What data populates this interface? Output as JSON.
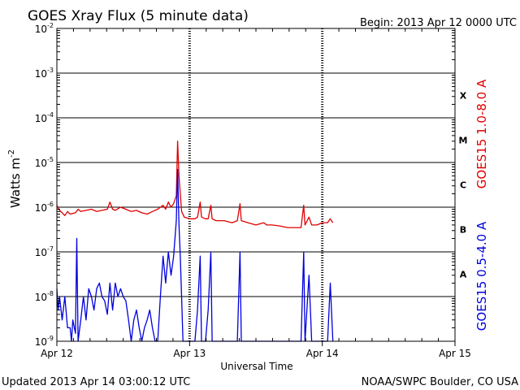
{
  "chart_data": {
    "type": "line",
    "title": "GOES Xray Flux (5 minute data)",
    "begin_label": "Begin:  2013 Apr 12 0000 UTC",
    "xlabel": "Universal Time",
    "ylabel": "Watts m",
    "ylabel_exponent": "-2",
    "y_scale": "log",
    "ylim": [
      1e-09,
      0.01
    ],
    "y_ticks": [
      {
        "base": "10",
        "exp": "-2"
      },
      {
        "base": "10",
        "exp": "-3"
      },
      {
        "base": "10",
        "exp": "-4"
      },
      {
        "base": "10",
        "exp": "-5"
      },
      {
        "base": "10",
        "exp": "-6"
      },
      {
        "base": "10",
        "exp": "-7"
      },
      {
        "base": "10",
        "exp": "-8"
      },
      {
        "base": "10",
        "exp": "-9"
      }
    ],
    "x_range_days": [
      0,
      3
    ],
    "x_ticks": [
      "Apr 12",
      "Apr 13",
      "Apr 14",
      "Apr 15"
    ],
    "flare_classes": [
      "X",
      "M",
      "C",
      "B",
      "A"
    ],
    "grid": true,
    "series": [
      {
        "name": "GOES15 1.0-8.0 A",
        "color": "#e00000",
        "points": [
          [
            0.0,
            1.1e-06
          ],
          [
            0.02,
            8.5e-07
          ],
          [
            0.04,
            7.5e-07
          ],
          [
            0.06,
            6.5e-07
          ],
          [
            0.08,
            8e-07
          ],
          [
            0.1,
            7e-07
          ],
          [
            0.14,
            7.5e-07
          ],
          [
            0.16,
            9e-07
          ],
          [
            0.18,
            8e-07
          ],
          [
            0.22,
            8.5e-07
          ],
          [
            0.26,
            9e-07
          ],
          [
            0.3,
            8e-07
          ],
          [
            0.34,
            8.5e-07
          ],
          [
            0.38,
            9e-07
          ],
          [
            0.4,
            1.3e-06
          ],
          [
            0.42,
            9e-07
          ],
          [
            0.44,
            8.5e-07
          ],
          [
            0.48,
            1e-06
          ],
          [
            0.52,
            9e-07
          ],
          [
            0.56,
            8e-07
          ],
          [
            0.6,
            8.5e-07
          ],
          [
            0.64,
            7.5e-07
          ],
          [
            0.68,
            7e-07
          ],
          [
            0.72,
            8e-07
          ],
          [
            0.76,
            9e-07
          ],
          [
            0.8,
            1.1e-06
          ],
          [
            0.82,
            9e-07
          ],
          [
            0.84,
            1.3e-06
          ],
          [
            0.86,
            1e-06
          ],
          [
            0.88,
            1.2e-06
          ],
          [
            0.9,
            1.8e-06
          ],
          [
            0.91,
            3e-05
          ],
          [
            0.92,
            5e-06
          ],
          [
            0.93,
            2e-06
          ],
          [
            0.94,
            8e-07
          ],
          [
            0.96,
            6e-07
          ],
          [
            1.0,
            5.5e-07
          ],
          [
            1.04,
            5.5e-07
          ],
          [
            1.06,
            6e-07
          ],
          [
            1.08,
            1.3e-06
          ],
          [
            1.09,
            6e-07
          ],
          [
            1.12,
            5.5e-07
          ],
          [
            1.14,
            5.5e-07
          ],
          [
            1.16,
            1.1e-06
          ],
          [
            1.17,
            5.5e-07
          ],
          [
            1.2,
            5e-07
          ],
          [
            1.26,
            5e-07
          ],
          [
            1.32,
            4.5e-07
          ],
          [
            1.36,
            5e-07
          ],
          [
            1.38,
            1.2e-06
          ],
          [
            1.39,
            5e-07
          ],
          [
            1.44,
            4.5e-07
          ],
          [
            1.5,
            4e-07
          ],
          [
            1.56,
            4.5e-07
          ],
          [
            1.58,
            4e-07
          ],
          [
            1.62,
            4e-07
          ],
          [
            1.68,
            3.8e-07
          ],
          [
            1.74,
            3.5e-07
          ],
          [
            1.8,
            3.5e-07
          ],
          [
            1.84,
            3.5e-07
          ],
          [
            1.86,
            1.1e-06
          ],
          [
            1.87,
            4e-07
          ],
          [
            1.9,
            6e-07
          ],
          [
            1.92,
            4e-07
          ],
          [
            1.96,
            4e-07
          ],
          [
            2.0,
            4.5e-07
          ],
          [
            2.04,
            4.5e-07
          ],
          [
            2.06,
            5.5e-07
          ],
          [
            2.08,
            4.5e-07
          ]
        ]
      },
      {
        "name": "GOES15 0.5-4.0 A",
        "color": "#0000dd",
        "points": [
          [
            0.0,
            1.5e-08
          ],
          [
            0.01,
            5e-09
          ],
          [
            0.02,
            1e-08
          ],
          [
            0.04,
            3e-09
          ],
          [
            0.06,
            1e-08
          ],
          [
            0.08,
            2e-09
          ],
          [
            0.1,
            2e-09
          ],
          [
            0.11,
            1e-09
          ],
          [
            0.12,
            3e-09
          ],
          [
            0.14,
            1.5e-09
          ],
          [
            0.15,
            2e-07
          ],
          [
            0.16,
            1e-09
          ],
          [
            0.18,
            3e-09
          ],
          [
            0.2,
            1e-08
          ],
          [
            0.22,
            3e-09
          ],
          [
            0.24,
            1.5e-08
          ],
          [
            0.26,
            1e-08
          ],
          [
            0.28,
            5e-09
          ],
          [
            0.3,
            1.5e-08
          ],
          [
            0.32,
            2e-08
          ],
          [
            0.34,
            1e-08
          ],
          [
            0.36,
            8e-09
          ],
          [
            0.38,
            4e-09
          ],
          [
            0.4,
            2e-08
          ],
          [
            0.42,
            5e-09
          ],
          [
            0.44,
            2e-08
          ],
          [
            0.46,
            1e-08
          ],
          [
            0.48,
            1.5e-08
          ],
          [
            0.5,
            1e-08
          ],
          [
            0.52,
            8e-09
          ],
          [
            0.54,
            3e-09
          ],
          [
            0.56,
            1e-09
          ],
          [
            0.58,
            3e-09
          ],
          [
            0.6,
            5e-09
          ],
          [
            0.62,
            2e-09
          ],
          [
            0.64,
            1e-09
          ],
          [
            0.66,
            2e-09
          ],
          [
            0.68,
            3e-09
          ],
          [
            0.7,
            5e-09
          ],
          [
            0.72,
            2e-09
          ],
          [
            0.74,
            1e-09
          ],
          [
            0.76,
            1e-09
          ],
          [
            0.78,
            1e-08
          ],
          [
            0.8,
            8e-08
          ],
          [
            0.82,
            2e-08
          ],
          [
            0.84,
            1e-07
          ],
          [
            0.86,
            3e-08
          ],
          [
            0.88,
            8e-08
          ],
          [
            0.9,
            5e-07
          ],
          [
            0.91,
            7e-06
          ],
          [
            0.92,
            4e-07
          ],
          [
            0.93,
            8e-08
          ],
          [
            0.94,
            1e-08
          ],
          [
            0.95,
            1e-09
          ],
          [
            1.0,
            1e-09
          ],
          [
            1.04,
            1e-09
          ],
          [
            1.06,
            5e-09
          ],
          [
            1.08,
            8e-08
          ],
          [
            1.09,
            1e-09
          ],
          [
            1.12,
            1e-09
          ],
          [
            1.14,
            5e-09
          ],
          [
            1.16,
            1e-07
          ],
          [
            1.17,
            1e-09
          ],
          [
            1.2,
            1e-09
          ],
          [
            1.26,
            1e-09
          ],
          [
            1.3,
            1e-09
          ],
          [
            1.36,
            1e-09
          ],
          [
            1.38,
            1e-07
          ],
          [
            1.39,
            1e-09
          ],
          [
            1.44,
            1e-09
          ],
          [
            1.5,
            1e-09
          ],
          [
            1.56,
            1e-09
          ],
          [
            1.62,
            1e-09
          ],
          [
            1.68,
            1e-09
          ],
          [
            1.74,
            1e-09
          ],
          [
            1.8,
            1e-09
          ],
          [
            1.84,
            1e-09
          ],
          [
            1.86,
            1e-07
          ],
          [
            1.87,
            1e-09
          ],
          [
            1.9,
            3e-08
          ],
          [
            1.92,
            1e-09
          ],
          [
            1.96,
            1e-09
          ],
          [
            2.0,
            1e-09
          ],
          [
            2.04,
            1e-09
          ],
          [
            2.06,
            2e-08
          ],
          [
            2.08,
            1e-09
          ]
        ]
      }
    ]
  },
  "footer": {
    "updated": "Updated 2013 Apr 14 03:00:12 UTC",
    "credit": "NOAA/SWPC Boulder, CO USA"
  }
}
